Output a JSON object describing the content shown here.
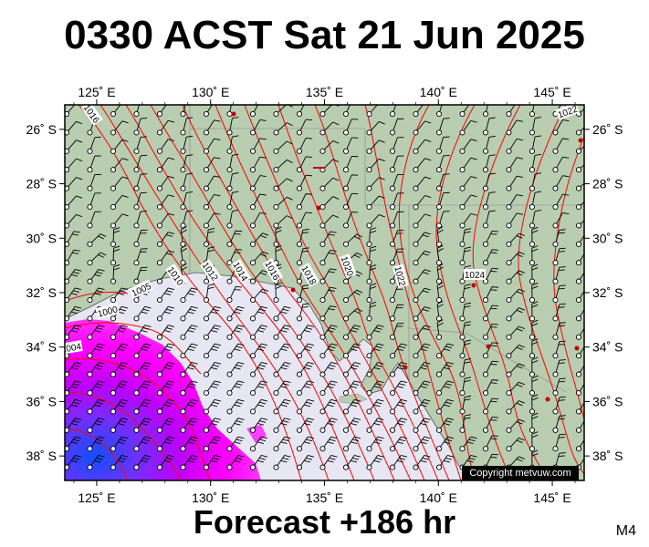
{
  "title": "0330 ACST Sat 21 Jun 2025",
  "forecast_label": "Forecast +186 hr",
  "model_code": "M4",
  "copyright": "Copyright metvuw.com",
  "axes": {
    "lon_labels": [
      "125˚ E",
      "130˚ E",
      "135˚ E",
      "140˚ E",
      "145˚ E"
    ],
    "lat_labels": [
      "26˚ S",
      "28˚ S",
      "30˚ S",
      "32˚ S",
      "34˚ S",
      "36˚ S",
      "38˚ S"
    ],
    "lon_values": [
      125,
      130,
      135,
      140,
      145
    ],
    "lat_values": [
      -26,
      -28,
      -30,
      -32,
      -34,
      -36,
      -38
    ],
    "lon_range": [
      123.6,
      146.4
    ],
    "lat_range": [
      -38.9,
      -25.1
    ]
  },
  "isobar_labels": [
    "1016",
    "1005",
    "1010",
    "1012",
    "1014",
    "1016",
    "1018",
    "1020",
    "1022",
    "1024",
    "1022",
    "1000",
    "1004"
  ],
  "colors": {
    "land": "#b9cdb0",
    "sea": "#e7e7f4",
    "isobar": "#ff0000",
    "rain_heavy": "#ff00ff",
    "rain_extreme": "#7030ff",
    "rain_core": "#2050ff",
    "barb": "#000000",
    "frame": "#000000"
  }
}
